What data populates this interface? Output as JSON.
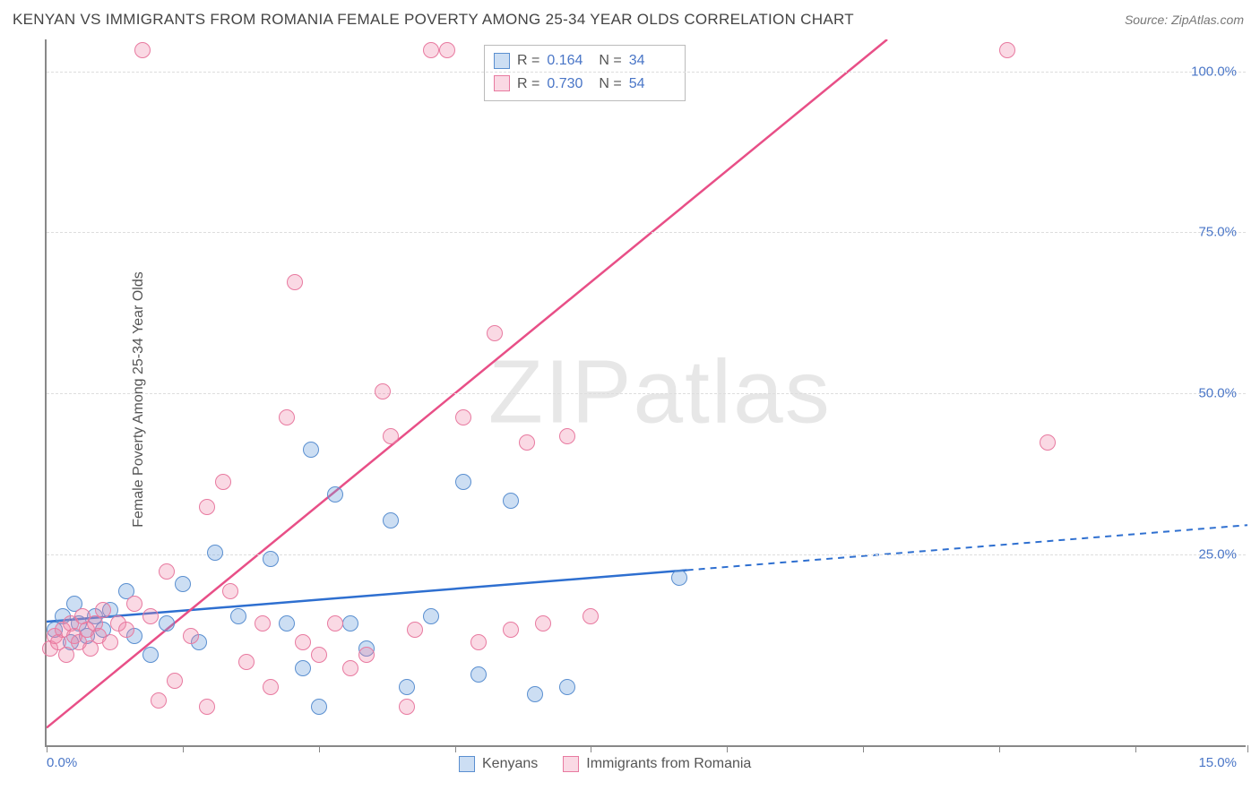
{
  "header": {
    "title": "KENYAN VS IMMIGRANTS FROM ROMANIA FEMALE POVERTY AMONG 25-34 YEAR OLDS CORRELATION CHART",
    "source_prefix": "Source: ",
    "source_name": "ZipAtlas.com"
  },
  "chart": {
    "type": "scatter",
    "watermark": "ZIPatlas",
    "ylabel": "Female Poverty Among 25-34 Year Olds",
    "xlim": [
      0,
      15
    ],
    "ylim": [
      -5,
      105
    ],
    "x_tick_label_left": "0.0%",
    "x_tick_label_right": "15.0%",
    "x_ticks": [
      0,
      1.7,
      3.4,
      5.1,
      6.8,
      8.5,
      10.2,
      11.9,
      13.6,
      15
    ],
    "y_gridlines": [
      25,
      50,
      75,
      100
    ],
    "y_tick_labels": [
      "25.0%",
      "50.0%",
      "75.0%",
      "100.0%"
    ],
    "background_color": "#ffffff",
    "grid_color": "#dddddd",
    "axis_color": "#888888",
    "label_color": "#555555",
    "tick_label_color": "#4a76c7",
    "series": [
      {
        "name": "Kenyans",
        "marker_fill": "rgba(108,160,220,0.35)",
        "marker_stroke": "#5a8fd0",
        "line_color": "#2e6fd0",
        "line_width": 2.5,
        "marker_radius": 9,
        "r_value": "0.164",
        "n_value": "34",
        "trend_line": {
          "x1": 0,
          "y1": 14.5,
          "x2": 8.0,
          "y2": 22.5,
          "dash_extend_x": 15,
          "dash_extend_y": 29.5
        },
        "points": [
          [
            0.1,
            13
          ],
          [
            0.2,
            15
          ],
          [
            0.3,
            11
          ],
          [
            0.35,
            17
          ],
          [
            0.4,
            14
          ],
          [
            0.5,
            12
          ],
          [
            0.6,
            15
          ],
          [
            0.7,
            13
          ],
          [
            0.8,
            16
          ],
          [
            1.0,
            19
          ],
          [
            1.1,
            12
          ],
          [
            1.3,
            9
          ],
          [
            1.5,
            14
          ],
          [
            1.7,
            20
          ],
          [
            1.9,
            11
          ],
          [
            2.1,
            25
          ],
          [
            2.4,
            15
          ],
          [
            2.8,
            24
          ],
          [
            3.0,
            14
          ],
          [
            3.2,
            7
          ],
          [
            3.3,
            41
          ],
          [
            3.4,
            1
          ],
          [
            3.6,
            34
          ],
          [
            3.8,
            14
          ],
          [
            4.0,
            10
          ],
          [
            4.3,
            30
          ],
          [
            4.5,
            4
          ],
          [
            4.8,
            15
          ],
          [
            5.2,
            36
          ],
          [
            5.4,
            6
          ],
          [
            5.8,
            33
          ],
          [
            6.1,
            3
          ],
          [
            6.5,
            4
          ],
          [
            7.9,
            21
          ]
        ]
      },
      {
        "name": "Immigrants from Romania",
        "marker_fill": "rgba(240,130,165,0.30)",
        "marker_stroke": "#e87aa0",
        "line_color": "#e84f87",
        "line_width": 2.5,
        "marker_radius": 9,
        "r_value": "0.730",
        "n_value": "54",
        "trend_line": {
          "x1": 0,
          "y1": -2,
          "x2": 10.5,
          "y2": 105
        },
        "points": [
          [
            0.05,
            10
          ],
          [
            0.1,
            12
          ],
          [
            0.15,
            11
          ],
          [
            0.2,
            13
          ],
          [
            0.25,
            9
          ],
          [
            0.3,
            14
          ],
          [
            0.35,
            12
          ],
          [
            0.4,
            11
          ],
          [
            0.45,
            15
          ],
          [
            0.5,
            13
          ],
          [
            0.55,
            10
          ],
          [
            0.6,
            14
          ],
          [
            0.65,
            12
          ],
          [
            0.7,
            16
          ],
          [
            0.8,
            11
          ],
          [
            0.9,
            14
          ],
          [
            1.0,
            13
          ],
          [
            1.1,
            17
          ],
          [
            1.2,
            103
          ],
          [
            1.3,
            15
          ],
          [
            1.5,
            22
          ],
          [
            1.6,
            5
          ],
          [
            1.8,
            12
          ],
          [
            2.0,
            32
          ],
          [
            2.2,
            36
          ],
          [
            2.3,
            19
          ],
          [
            2.5,
            8
          ],
          [
            2.7,
            14
          ],
          [
            2.8,
            4
          ],
          [
            3.0,
            46
          ],
          [
            3.1,
            67
          ],
          [
            3.2,
            11
          ],
          [
            3.4,
            9
          ],
          [
            3.6,
            14
          ],
          [
            3.8,
            7
          ],
          [
            4.0,
            9
          ],
          [
            4.2,
            50
          ],
          [
            4.3,
            43
          ],
          [
            4.5,
            1
          ],
          [
            4.6,
            13
          ],
          [
            4.8,
            103
          ],
          [
            5.0,
            103
          ],
          [
            5.2,
            46
          ],
          [
            5.4,
            11
          ],
          [
            5.6,
            59
          ],
          [
            5.8,
            13
          ],
          [
            6.0,
            42
          ],
          [
            6.2,
            14
          ],
          [
            6.5,
            43
          ],
          [
            6.8,
            15
          ],
          [
            12.0,
            103
          ],
          [
            12.5,
            42
          ],
          [
            1.4,
            2
          ],
          [
            2.0,
            1
          ]
        ]
      }
    ],
    "stat_legend_labels": {
      "r_prefix": "R  =",
      "n_prefix": "N  ="
    },
    "bottom_legend_labels": [
      "Kenyans",
      "Immigrants from Romania"
    ]
  }
}
